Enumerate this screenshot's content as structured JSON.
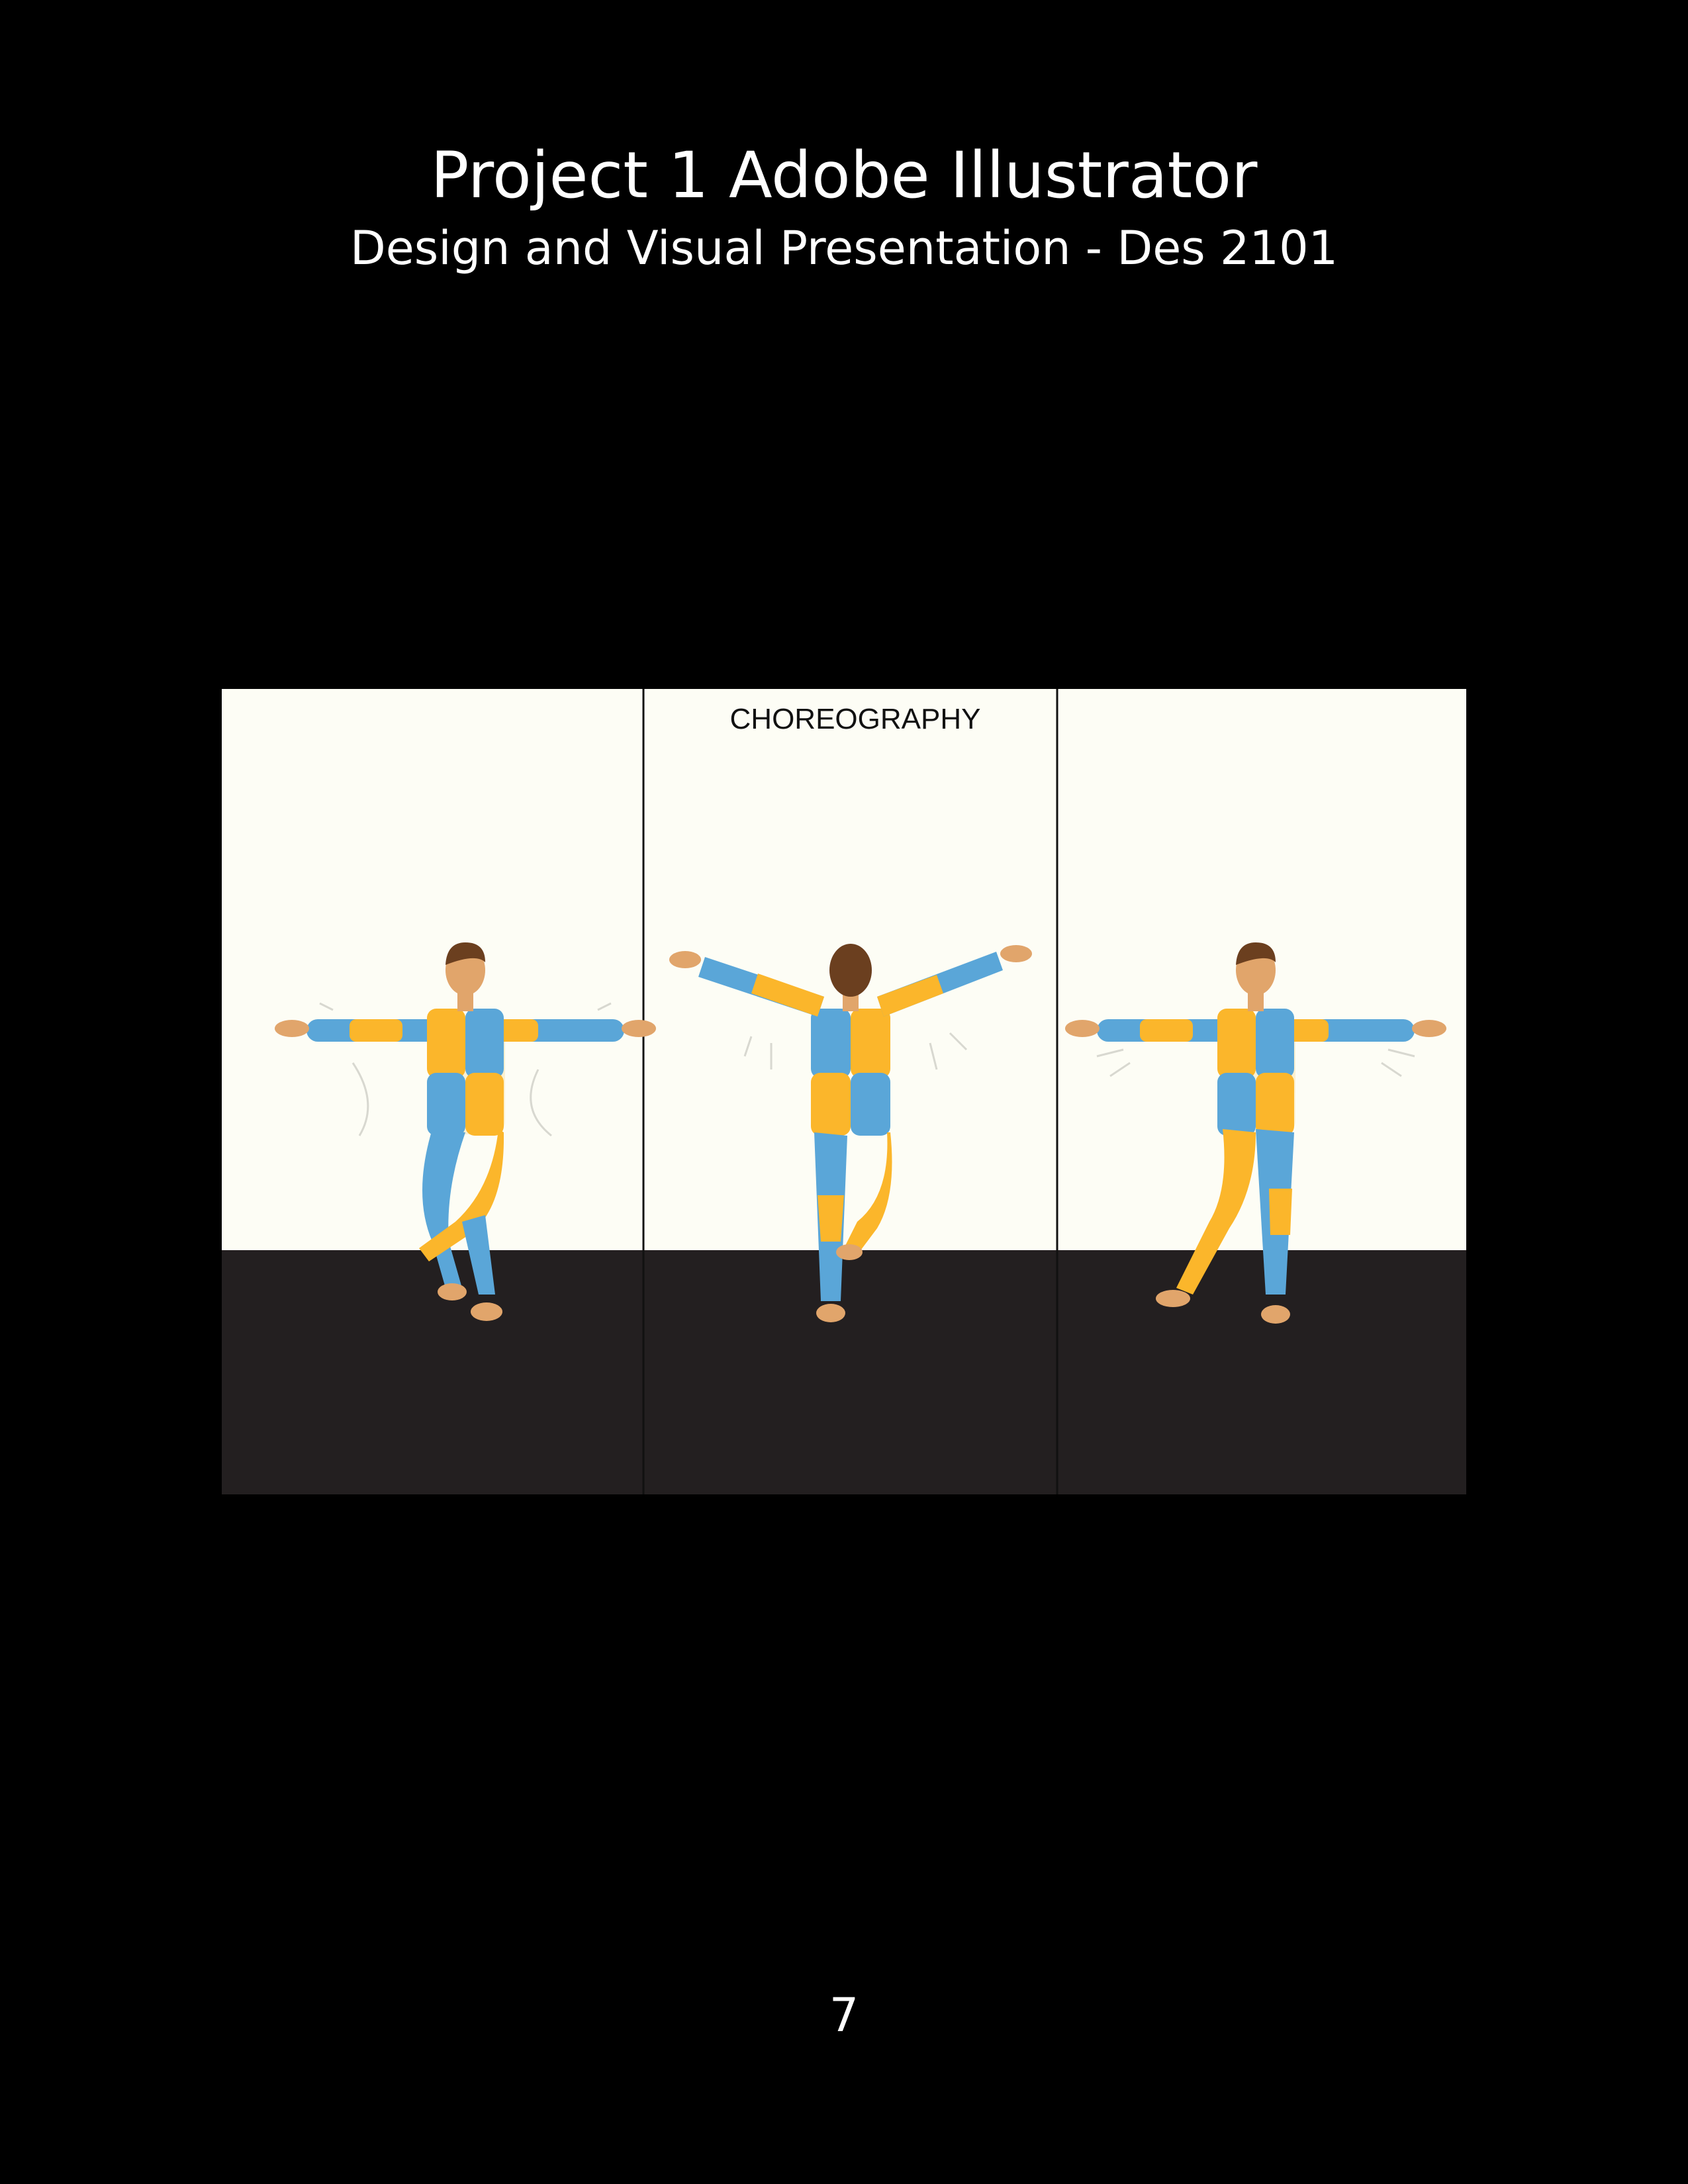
{
  "header": {
    "title": "Project 1 Adobe Illustrator",
    "subtitle": "Design and Visual Presentation - Des 2101"
  },
  "artwork": {
    "label": "CHOREOGRAPHY",
    "colors": {
      "wall": "#fdfdf5",
      "floor": "#231f20",
      "suit_blue": "#5aa6d8",
      "suit_yellow": "#fbb62b",
      "skin": "#e1a56b",
      "hair": "#6b3f1f"
    }
  },
  "footer": {
    "page_number": "7"
  }
}
